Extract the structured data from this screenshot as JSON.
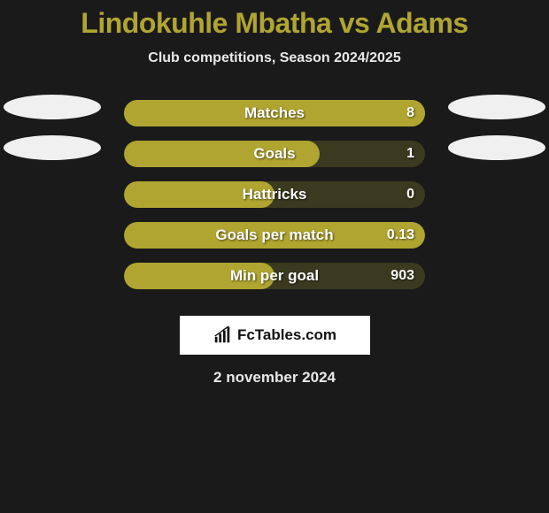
{
  "title_color": "#b0a530",
  "background_color": "#1a1a1a",
  "text_color": "#e8e8e8",
  "pill_color": "#f0f0f0",
  "header": {
    "title": "Lindokuhle Mbatha vs Adams",
    "subtitle": "Club competitions, Season 2024/2025"
  },
  "stats": [
    {
      "label": "Matches",
      "value": "8",
      "show_pills": true,
      "bar_bg": "#b0a530",
      "fill_pct": 100,
      "fill_color": "#b0a530"
    },
    {
      "label": "Goals",
      "value": "1",
      "show_pills": true,
      "bar_bg": "#3a3a20",
      "fill_pct": 65,
      "fill_color": "#b0a530"
    },
    {
      "label": "Hattricks",
      "value": "0",
      "show_pills": false,
      "bar_bg": "#3a3a20",
      "fill_pct": 50,
      "fill_color": "#b0a530"
    },
    {
      "label": "Goals per match",
      "value": "0.13",
      "show_pills": false,
      "bar_bg": "#3a3a20",
      "fill_pct": 100,
      "fill_color": "#b0a530"
    },
    {
      "label": "Min per goal",
      "value": "903",
      "show_pills": false,
      "bar_bg": "#3a3a20",
      "fill_pct": 50,
      "fill_color": "#b0a530"
    }
  ],
  "footer": {
    "logo_text": "FcTables.com",
    "date": "2 november 2024"
  }
}
